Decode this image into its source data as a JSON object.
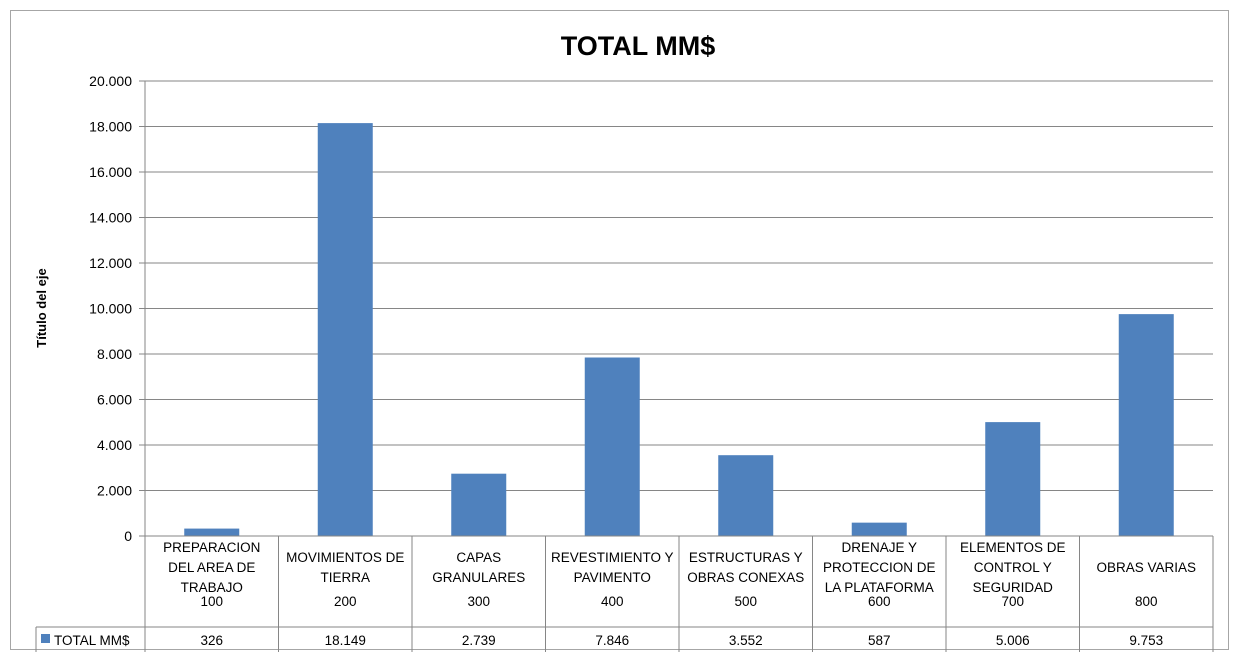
{
  "chart_data": {
    "type": "bar",
    "title": "TOTAL MM$",
    "ylabel": "Título del eje",
    "xlabel": "",
    "ylim": [
      0,
      20000
    ],
    "yticks": [
      0,
      2000,
      4000,
      6000,
      8000,
      10000,
      12000,
      14000,
      16000,
      18000,
      20000
    ],
    "ytick_labels": [
      "0",
      "2.000",
      "4.000",
      "6.000",
      "8.000",
      "10.000",
      "12.000",
      "14.000",
      "16.000",
      "18.000",
      "20.000"
    ],
    "grid": "horizontal",
    "bar_color": "#4f81bd",
    "categories": [
      [
        "PREPARACION",
        "DEL AREA DE",
        "TRABAJO"
      ],
      [
        "MOVIMIENTOS DE",
        "TIERRA"
      ],
      [
        "CAPAS",
        "GRANULARES"
      ],
      [
        "REVESTIMIENTO Y",
        "PAVIMENTO"
      ],
      [
        "ESTRUCTURAS Y",
        "OBRAS CONEXAS"
      ],
      [
        "DRENAJE Y",
        "PROTECCION DE",
        "LA PLATAFORMA"
      ],
      [
        "ELEMENTOS DE",
        "CONTROL Y",
        "SEGURIDAD"
      ],
      [
        "OBRAS VARIAS"
      ]
    ],
    "codes": [
      "100",
      "200",
      "300",
      "400",
      "500",
      "600",
      "700",
      "800"
    ],
    "series": [
      {
        "name": "TOTAL MM$",
        "values": [
          326,
          18149,
          2739,
          7846,
          3552,
          587,
          5006,
          9753
        ],
        "value_labels": [
          "326",
          "18.149",
          "2.739",
          "7.846",
          "3.552",
          "587",
          "5.006",
          "9.753"
        ]
      }
    ]
  }
}
